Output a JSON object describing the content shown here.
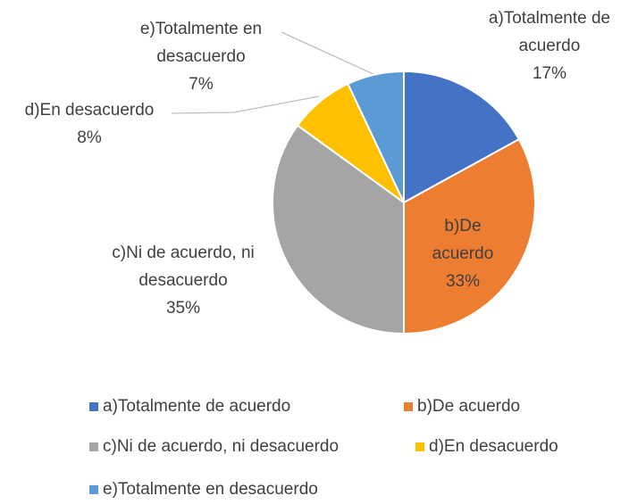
{
  "chart_data": {
    "type": "pie",
    "categories": [
      "a)Totalmente de acuerdo",
      "b)De acuerdo",
      "c)Ni de acuerdo, ni desacuerdo",
      "d)En desacuerdo",
      "e)Totalmente en desacuerdo"
    ],
    "values": [
      17,
      33,
      35,
      8,
      7
    ],
    "value_labels": [
      "17%",
      "33%",
      "35%",
      "8%",
      "7%"
    ],
    "colors": [
      "#4472c4",
      "#ed7d31",
      "#a5a5a5",
      "#ffc000",
      "#5b9bd5"
    ],
    "legend": "bottom"
  }
}
